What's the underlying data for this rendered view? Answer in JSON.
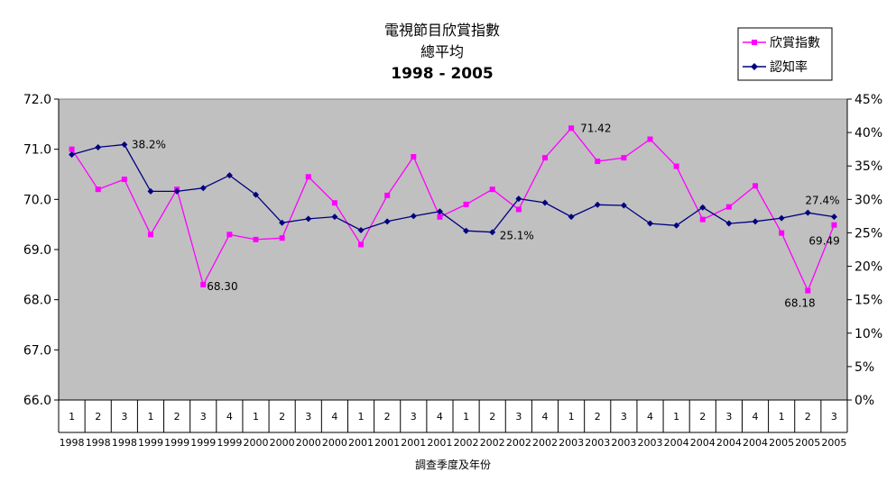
{
  "chart_data": {
    "type": "line",
    "title": "電視節目欣賞指數",
    "subtitle": "總平均",
    "period": "1998 - 2005",
    "xlabel": "調查季度及年份",
    "ylabel": "",
    "y2label": "",
    "ylim": [
      66.0,
      72.0
    ],
    "y2lim": [
      0,
      45
    ],
    "yticks": [
      "66.0",
      "67.0",
      "68.0",
      "69.0",
      "70.0",
      "71.0",
      "72.0"
    ],
    "y2ticks": [
      "0%",
      "5%",
      "10%",
      "15%",
      "20%",
      "25%",
      "30%",
      "35%",
      "40%",
      "45%"
    ],
    "grid": false,
    "legend_position": "top-right",
    "plot_background": "#c0c0c0",
    "categories": [
      {
        "q": "1",
        "y": "1998"
      },
      {
        "q": "2",
        "y": "1998"
      },
      {
        "q": "3",
        "y": "1998"
      },
      {
        "q": "1",
        "y": "1999"
      },
      {
        "q": "2",
        "y": "1999"
      },
      {
        "q": "3",
        "y": "1999"
      },
      {
        "q": "4",
        "y": "1999"
      },
      {
        "q": "1",
        "y": "2000"
      },
      {
        "q": "2",
        "y": "2000"
      },
      {
        "q": "3",
        "y": "2000"
      },
      {
        "q": "4",
        "y": "2000"
      },
      {
        "q": "1",
        "y": "2001"
      },
      {
        "q": "2",
        "y": "2001"
      },
      {
        "q": "3",
        "y": "2001"
      },
      {
        "q": "4",
        "y": "2001"
      },
      {
        "q": "1",
        "y": "2002"
      },
      {
        "q": "2",
        "y": "2002"
      },
      {
        "q": "3",
        "y": "2002"
      },
      {
        "q": "4",
        "y": "2002"
      },
      {
        "q": "1",
        "y": "2003"
      },
      {
        "q": "2",
        "y": "2003"
      },
      {
        "q": "3",
        "y": "2003"
      },
      {
        "q": "4",
        "y": "2003"
      },
      {
        "q": "1",
        "y": "2004"
      },
      {
        "q": "2",
        "y": "2004"
      },
      {
        "q": "3",
        "y": "2004"
      },
      {
        "q": "4",
        "y": "2004"
      },
      {
        "q": "1",
        "y": "2005"
      },
      {
        "q": "2",
        "y": "2005"
      },
      {
        "q": "3",
        "y": "2005"
      }
    ],
    "series": [
      {
        "name": "欣賞指數",
        "axis": "left",
        "color": "#ff00ff",
        "marker": "square",
        "values": [
          71.0,
          70.2,
          70.4,
          69.3,
          70.2,
          68.3,
          69.3,
          69.2,
          69.23,
          70.45,
          69.93,
          69.1,
          70.08,
          70.85,
          69.65,
          69.9,
          70.2,
          69.8,
          70.83,
          71.42,
          70.76,
          70.83,
          71.2,
          70.66,
          69.6,
          69.85,
          70.27,
          69.33,
          68.18,
          69.49
        ]
      },
      {
        "name": "認知率",
        "axis": "right",
        "color": "#000080",
        "marker": "diamond",
        "values": [
          36.7,
          37.8,
          38.2,
          31.2,
          31.2,
          31.7,
          33.6,
          30.7,
          26.5,
          27.1,
          27.4,
          25.4,
          26.7,
          27.5,
          28.2,
          25.3,
          25.1,
          30.1,
          29.5,
          27.4,
          29.2,
          29.1,
          26.4,
          26.1,
          28.8,
          26.4,
          26.7,
          27.2,
          28.0,
          27.4
        ]
      }
    ],
    "data_labels": [
      {
        "series": 0,
        "index": 5,
        "text": "68.30"
      },
      {
        "series": 0,
        "index": 19,
        "text": "71.42"
      },
      {
        "series": 0,
        "index": 28,
        "text": "68.18"
      },
      {
        "series": 0,
        "index": 29,
        "text": "69.49"
      },
      {
        "series": 1,
        "index": 2,
        "text": "38.2%"
      },
      {
        "series": 1,
        "index": 16,
        "text": "25.1%"
      },
      {
        "series": 1,
        "index": 29,
        "text": "27.4%"
      }
    ]
  }
}
